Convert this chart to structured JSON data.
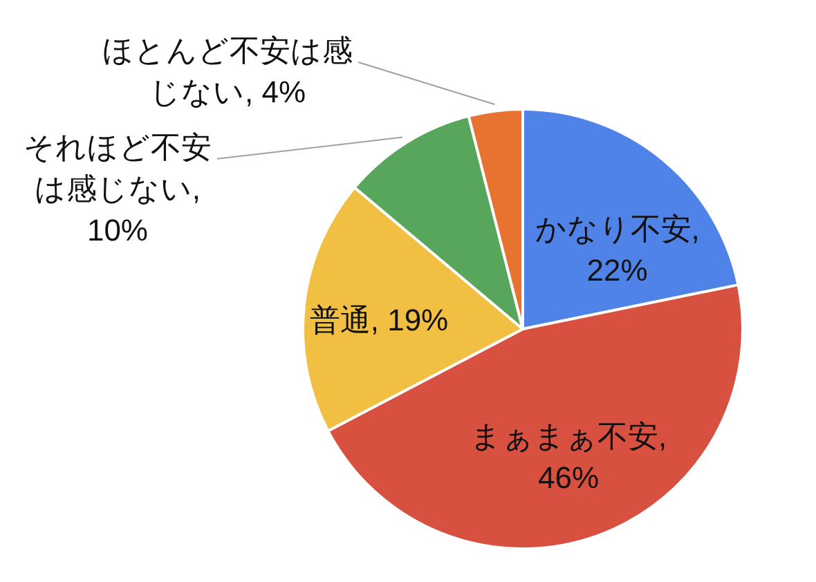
{
  "chart_data": {
    "type": "pie",
    "categories": [
      "かなり不安",
      "まぁまぁ不安",
      "普通",
      "それほど不安は感じない",
      "ほとんど不安は感じない"
    ],
    "values": [
      22,
      46,
      19,
      10,
      4
    ],
    "colors": [
      "#5083e8",
      "#d85140",
      "#f1bf42",
      "#58a65c",
      "#e8722f"
    ],
    "value_labels": [
      ", 22%",
      ", 46%",
      ", 19%",
      ", 10%",
      ", 4%"
    ]
  }
}
